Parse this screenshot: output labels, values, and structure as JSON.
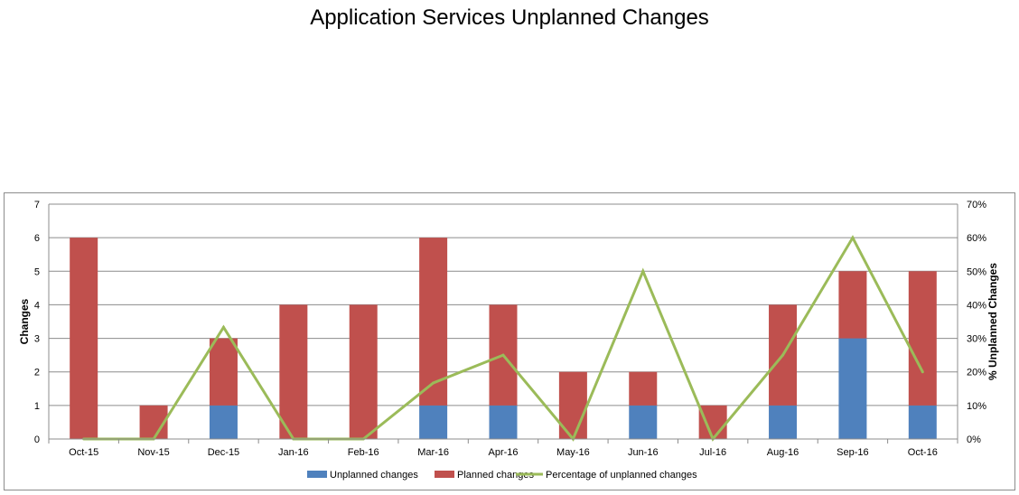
{
  "chart_data": {
    "type": "bar",
    "title": "Application Services Unplanned Changes",
    "categories": [
      "Oct-15",
      "Nov-15",
      "Dec-15",
      "Jan-16",
      "Feb-16",
      "Mar-16",
      "Apr-16",
      "May-16",
      "Jun-16",
      "Jul-16",
      "Aug-16",
      "Sep-16",
      "Oct-16"
    ],
    "series": [
      {
        "name": "Unplanned changes",
        "kind": "bar",
        "stacked": true,
        "color": "#4f81bd",
        "values": [
          0,
          0,
          1,
          0,
          0,
          1,
          1,
          0,
          1,
          0,
          1,
          3,
          1
        ]
      },
      {
        "name": "Planned changes",
        "kind": "bar",
        "stacked": true,
        "color": "#c0504d",
        "values": [
          6,
          1,
          2,
          4,
          4,
          5,
          3,
          2,
          1,
          1,
          3,
          2,
          4
        ]
      },
      {
        "name": "Percentage of unplanned changes",
        "kind": "line",
        "axis": "right",
        "color": "#9bbb59",
        "values": [
          0,
          0,
          33.3,
          0,
          0,
          16.7,
          25,
          0,
          50,
          0,
          25,
          60,
          20
        ]
      }
    ],
    "ylabel": "Changes",
    "ylabel_right": "% Unplanned Changes",
    "ylim": [
      0,
      7
    ],
    "ylim_right": [
      0,
      70
    ],
    "yticks": [
      "0",
      "1",
      "2",
      "3",
      "4",
      "5",
      "6",
      "7"
    ],
    "yticks_right": [
      "0%",
      "10%",
      "20%",
      "30%",
      "40%",
      "50%",
      "60%",
      "70%"
    ],
    "grid": true,
    "legend_position": "bottom"
  }
}
